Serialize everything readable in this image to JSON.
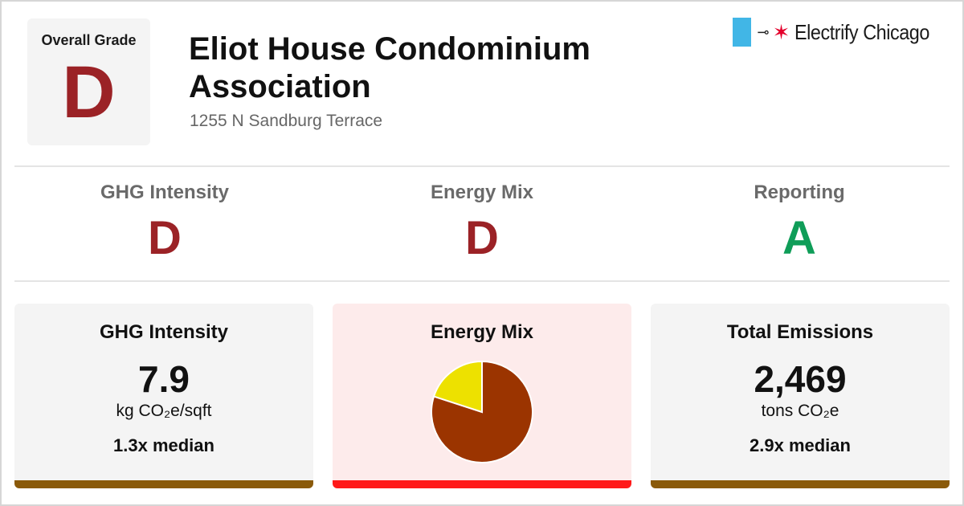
{
  "overall": {
    "label": "Overall Grade",
    "grade": "D",
    "grade_color": "#9b2226"
  },
  "building": {
    "name": "Eliot House Condominium Association",
    "address": "1255 N Sandburg Terrace"
  },
  "brand": {
    "name": "Electrify Chicago",
    "flag_color": "#41b6e6",
    "star_color": "#e4002b",
    "icons": [
      "plug-icon",
      "chicago-star-icon"
    ]
  },
  "subgrades": [
    {
      "label": "GHG Intensity",
      "grade": "D",
      "color": "#9b2226"
    },
    {
      "label": "Energy Mix",
      "grade": "D",
      "color": "#9b2226"
    },
    {
      "label": "Reporting",
      "grade": "A",
      "color": "#0f9d58"
    }
  ],
  "cards": {
    "ghg": {
      "title": "GHG Intensity",
      "value": "7.9",
      "unit": "kg CO₂e/sqft",
      "median": "1.3x median",
      "bar_color": "#8a5a0a"
    },
    "mix": {
      "title": "Energy Mix",
      "bar_color": "#ff1a1a",
      "background": "#fdebeb"
    },
    "emissions": {
      "title": "Total Emissions",
      "value": "2,469",
      "unit": "tons CO₂e",
      "median": "2.9x median",
      "bar_color": "#8a5a0a"
    }
  },
  "chart_data": {
    "type": "pie",
    "slices": [
      {
        "value": 80,
        "color": "#9b3400"
      },
      {
        "value": 20,
        "color": "#ede100"
      }
    ]
  }
}
